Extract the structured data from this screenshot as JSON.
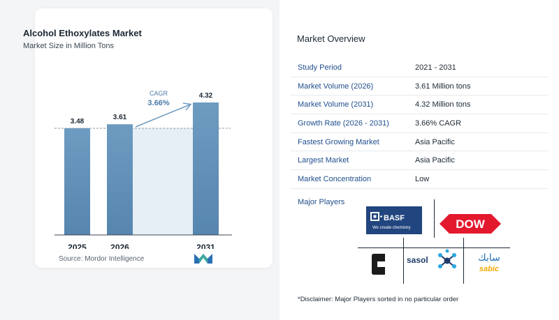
{
  "left": {
    "title": "Alcohol Ethoxylates Market",
    "subtitle": "Market Size in Million Tons",
    "source": "Source:  Mordor Intelligence",
    "cagr_label": "CAGR",
    "cagr_value": "3.66%"
  },
  "chart_data": {
    "type": "bar",
    "title": "Alcohol Ethoxylates Market",
    "subtitle": "Market Size in Million Tons",
    "categories": [
      "2025",
      "2026",
      "2031"
    ],
    "values": [
      3.48,
      3.61,
      4.32
    ],
    "data_labels": [
      "3.48",
      "3.61",
      "4.32"
    ],
    "annotation": {
      "label": "CAGR",
      "value": "3.66%"
    },
    "grid": false,
    "colors": {
      "bar": "#6e9bc0",
      "bar_bottom": "#5685ae",
      "band": "#e6eef6",
      "arrow": "#6e9bc0"
    }
  },
  "right": {
    "title": "Market Overview",
    "rows": [
      {
        "key": "Study Period",
        "value": "2021 - 2031"
      },
      {
        "key": "Market Volume (2026)",
        "value": "3.61 Million tons"
      },
      {
        "key": "Market Volume (2031)",
        "value": "4.32 Million tons"
      },
      {
        "key": "Growth Rate (2026 - 2031)",
        "value": "3.66% CAGR"
      },
      {
        "key": "Fastest Growing Market",
        "value": "Asia Pacific"
      },
      {
        "key": "Largest Market",
        "value": "Asia Pacific"
      },
      {
        "key": "Market Concentration",
        "value": "Low"
      }
    ],
    "players_label": "Major Players",
    "players": [
      "BASF",
      "Dow",
      "Chevron Phillips Chemical",
      "Sasol",
      "SABIC"
    ],
    "basf": {
      "name": "D·BASF",
      "tagline": "We create chemistry"
    },
    "dow": {
      "name": "DOW"
    },
    "sasol": {
      "name": "sasol"
    },
    "sabic": {
      "name": "sabic",
      "arabic": "سابك"
    },
    "disclaimer": "*Disclaimer: Major Players sorted in no particular order"
  },
  "colors": {
    "accent": "#1f4e8c",
    "basf_blue": "#21457e",
    "dow_red": "#e3192e",
    "sabic_orange": "#f2a900"
  }
}
